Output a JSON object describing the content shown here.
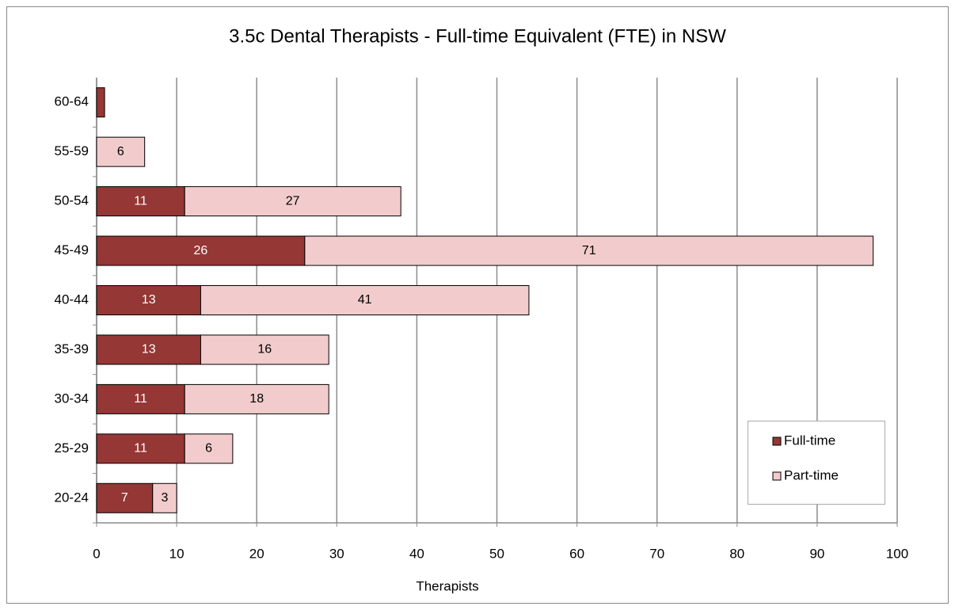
{
  "chart_data": {
    "type": "bar",
    "orientation": "horizontal",
    "stacked": true,
    "title": "3.5c Dental Therapists - Full-time Equivalent (FTE) in NSW",
    "x_label": "Therapists",
    "categories": [
      "20-24",
      "25-29",
      "30-34",
      "35-39",
      "40-44",
      "45-49",
      "50-54",
      "55-59",
      "60-64"
    ],
    "series": [
      {
        "name": "Full-time",
        "color": "#953735",
        "label_color": "#ffffff",
        "values": [
          7,
          11,
          11,
          13,
          13,
          26,
          11,
          null,
          1
        ],
        "value_labels": [
          7,
          11,
          11,
          13,
          13,
          26,
          11,
          null,
          null
        ]
      },
      {
        "name": "Part-time",
        "color": "#f2cccc",
        "label_color": "#000000",
        "values": [
          3,
          6,
          18,
          16,
          41,
          71,
          27,
          6,
          null
        ],
        "value_labels": [
          3,
          6,
          18,
          16,
          41,
          71,
          27,
          6,
          null
        ]
      }
    ],
    "xlim": [
      0,
      100
    ],
    "xticks": [
      0,
      10,
      20,
      30,
      40,
      50,
      60,
      70,
      80,
      90,
      100
    ],
    "grid": true,
    "legend": "lower right"
  }
}
